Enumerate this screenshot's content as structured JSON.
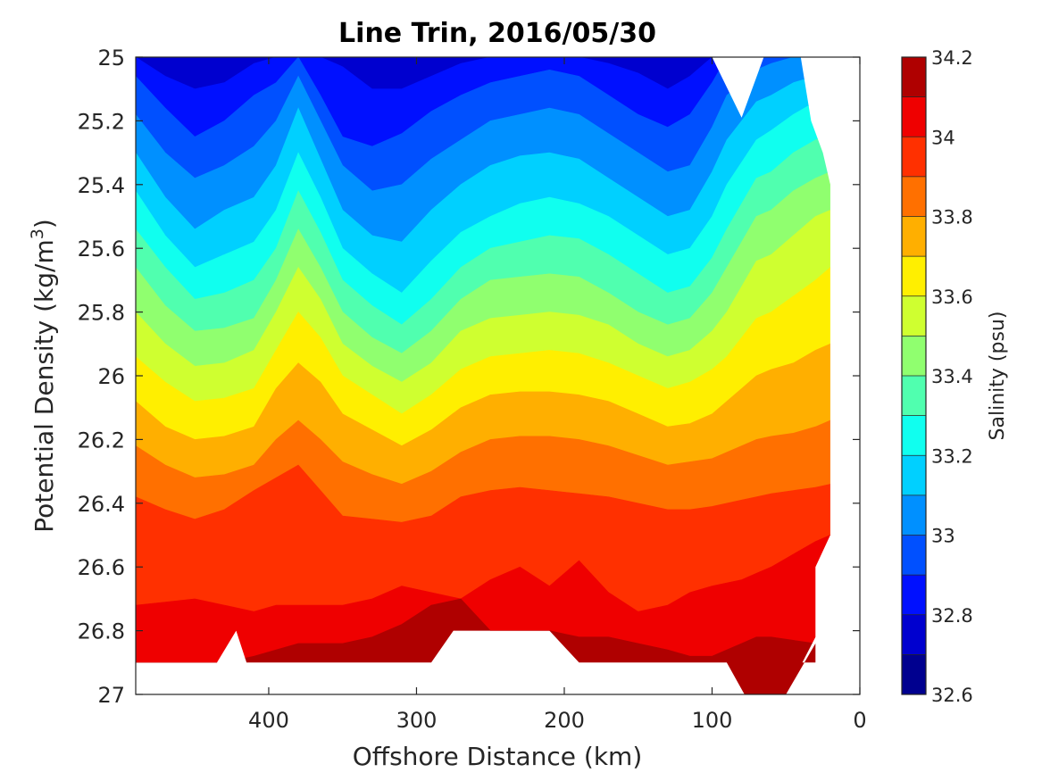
{
  "chart_data": {
    "type": "heatmap",
    "title": "Line Trin, 2016/05/30",
    "xlabel": "Offshore Distance (km)",
    "ylabel_main": "Potential Density (kg/m",
    "ylabel_sup": "3",
    "ylabel_end": ")",
    "colorbar_label": "Salinity (psu)",
    "xlim": [
      490,
      0
    ],
    "ylim": [
      25,
      27
    ],
    "x_ticks": [
      400,
      300,
      200,
      100,
      0
    ],
    "x_tick_labels": [
      "400",
      "300",
      "200",
      "100",
      "0"
    ],
    "y_ticks": [
      25,
      25.2,
      25.4,
      25.6,
      25.8,
      26,
      26.2,
      26.4,
      26.6,
      26.8,
      27
    ],
    "y_tick_labels": [
      "25",
      "25.2",
      "25.4",
      "25.6",
      "25.8",
      "26",
      "26.2",
      "26.4",
      "26.6",
      "26.8",
      "27"
    ],
    "colorbar_range": [
      32.6,
      34.2
    ],
    "colorbar_levels": [
      32.6,
      32.7,
      32.8,
      32.9,
      33.0,
      33.1,
      33.2,
      33.3,
      33.4,
      33.5,
      33.6,
      33.7,
      33.8,
      33.9,
      34.0,
      34.1,
      34.2
    ],
    "colorbar_ticks": [
      32.6,
      32.8,
      33,
      33.2,
      33.4,
      33.6,
      33.8,
      34,
      34.2
    ],
    "colorbar_tick_labels": [
      "32.6",
      "32.8",
      "33",
      "33.2",
      "33.4",
      "33.6",
      "33.8",
      "34",
      "34.2"
    ],
    "level_colors": [
      "#00008F",
      "#0000CF",
      "#0010FF",
      "#0050FF",
      "#0090FF",
      "#00D0FF",
      "#10FFEF",
      "#50FFAF",
      "#90FF6F",
      "#CFFF30",
      "#FFEF00",
      "#FFAF00",
      "#FF7000",
      "#FF3000",
      "#EF0000",
      "#AF0000"
    ],
    "sample_x": [
      490,
      470,
      450,
      430,
      410,
      395,
      380,
      365,
      350,
      330,
      310,
      290,
      270,
      250,
      230,
      210,
      190,
      170,
      150,
      130,
      115,
      100,
      90,
      80,
      70,
      60,
      45,
      30,
      20
    ],
    "isohalines": [
      {
        "salinity": 32.8,
        "density": [
          25,
          25.06,
          25.1,
          25.08,
          25.02,
          25,
          25,
          25,
          25.03,
          25.1,
          25.1,
          25.06,
          25.02,
          25,
          25,
          25,
          25,
          25.02,
          25.05,
          25.1,
          25.06,
          25,
          25,
          25,
          25,
          25,
          25,
          25,
          25
        ]
      },
      {
        "salinity": 32.9,
        "density": [
          25.06,
          25.16,
          25.25,
          25.2,
          25.12,
          25.08,
          25,
          25.12,
          25.25,
          25.28,
          25.24,
          25.17,
          25.12,
          25.08,
          25.06,
          25.04,
          25.06,
          25.12,
          25.18,
          25.22,
          25.18,
          25.08,
          25,
          25,
          25,
          25,
          25,
          25,
          25
        ]
      },
      {
        "salinity": 33.0,
        "density": [
          25.18,
          25.3,
          25.38,
          25.34,
          25.28,
          25.2,
          25.06,
          25.2,
          25.34,
          25.42,
          25.4,
          25.32,
          25.26,
          25.2,
          25.18,
          25.16,
          25.18,
          25.24,
          25.3,
          25.36,
          25.34,
          25.22,
          25.12,
          25.08,
          25.04,
          25.02,
          25,
          25,
          25
        ]
      },
      {
        "salinity": 33.1,
        "density": [
          25.3,
          25.44,
          25.54,
          25.48,
          25.44,
          25.34,
          25.16,
          25.32,
          25.48,
          25.56,
          25.58,
          25.48,
          25.4,
          25.34,
          25.31,
          25.3,
          25.32,
          25.38,
          25.44,
          25.5,
          25.48,
          25.36,
          25.26,
          25.2,
          25.14,
          25.12,
          25.08,
          25.06,
          25.05
        ]
      },
      {
        "salinity": 33.2,
        "density": [
          25.42,
          25.56,
          25.66,
          25.62,
          25.58,
          25.48,
          25.3,
          25.44,
          25.6,
          25.68,
          25.74,
          25.64,
          25.55,
          25.5,
          25.46,
          25.44,
          25.46,
          25.5,
          25.56,
          25.62,
          25.6,
          25.5,
          25.4,
          25.33,
          25.26,
          25.23,
          25.18,
          25.14,
          25.12
        ]
      },
      {
        "salinity": 33.3,
        "density": [
          25.54,
          25.66,
          25.76,
          25.74,
          25.7,
          25.6,
          25.42,
          25.55,
          25.7,
          25.78,
          25.84,
          25.76,
          25.66,
          25.6,
          25.58,
          25.56,
          25.57,
          25.62,
          25.68,
          25.74,
          25.72,
          25.63,
          25.54,
          25.46,
          25.38,
          25.36,
          25.3,
          25.26,
          25.24
        ]
      },
      {
        "salinity": 33.4,
        "density": [
          25.66,
          25.78,
          25.86,
          25.85,
          25.82,
          25.7,
          25.54,
          25.66,
          25.8,
          25.88,
          25.93,
          25.86,
          25.76,
          25.7,
          25.69,
          25.68,
          25.69,
          25.74,
          25.8,
          25.84,
          25.82,
          25.74,
          25.66,
          25.58,
          25.5,
          25.48,
          25.42,
          25.38,
          25.36
        ]
      },
      {
        "salinity": 33.5,
        "density": [
          25.8,
          25.9,
          25.97,
          25.96,
          25.92,
          25.8,
          25.66,
          25.76,
          25.9,
          25.97,
          26.02,
          25.96,
          25.86,
          25.82,
          25.81,
          25.8,
          25.81,
          25.84,
          25.9,
          25.94,
          25.92,
          25.86,
          25.8,
          25.72,
          25.64,
          25.62,
          25.56,
          25.5,
          25.48
        ]
      },
      {
        "salinity": 33.6,
        "density": [
          25.94,
          26.02,
          26.08,
          26.07,
          26.04,
          25.92,
          25.8,
          25.88,
          26,
          26.06,
          26.12,
          26.06,
          25.98,
          25.94,
          25.93,
          25.92,
          25.93,
          25.96,
          26,
          26.04,
          26.02,
          25.98,
          25.94,
          25.88,
          25.82,
          25.8,
          25.75,
          25.7,
          25.66
        ]
      },
      {
        "salinity": 33.7,
        "density": [
          26.08,
          26.16,
          26.2,
          26.19,
          26.16,
          26.04,
          25.96,
          26.02,
          26.12,
          26.17,
          26.22,
          26.17,
          26.1,
          26.06,
          26.05,
          26.05,
          26.06,
          26.08,
          26.12,
          26.16,
          26.15,
          26.12,
          26.08,
          26.04,
          26,
          25.98,
          25.96,
          25.92,
          25.9
        ]
      },
      {
        "salinity": 33.8,
        "density": [
          26.22,
          26.28,
          26.32,
          26.31,
          26.28,
          26.2,
          26.14,
          26.2,
          26.27,
          26.31,
          26.34,
          26.3,
          26.24,
          26.2,
          26.19,
          26.19,
          26.2,
          26.22,
          26.25,
          26.28,
          26.27,
          26.26,
          26.24,
          26.22,
          26.2,
          26.19,
          26.18,
          26.16,
          26.14
        ]
      },
      {
        "salinity": 33.9,
        "density": [
          26.38,
          26.42,
          26.45,
          26.42,
          26.36,
          26.32,
          26.28,
          26.36,
          26.44,
          26.45,
          26.46,
          26.44,
          26.38,
          26.36,
          26.35,
          26.36,
          26.37,
          26.38,
          26.4,
          26.42,
          26.42,
          26.41,
          26.4,
          26.39,
          26.38,
          26.37,
          26.36,
          26.35,
          26.34
        ]
      },
      {
        "salinity": 34.0,
        "density": [
          26.72,
          26.71,
          26.7,
          26.72,
          26.74,
          26.72,
          26.72,
          26.72,
          26.72,
          26.7,
          26.66,
          26.68,
          26.7,
          26.64,
          26.6,
          26.66,
          26.58,
          26.68,
          26.74,
          26.72,
          26.68,
          26.66,
          26.65,
          26.64,
          26.62,
          26.6,
          26.56,
          26.52,
          26.5
        ]
      },
      {
        "salinity": 34.1,
        "density": [
          26.9,
          26.9,
          26.9,
          26.9,
          26.88,
          26.86,
          26.84,
          26.84,
          26.84,
          26.82,
          26.78,
          26.72,
          26.7,
          26.8,
          26.8,
          26.8,
          26.82,
          26.82,
          26.84,
          26.86,
          26.88,
          26.88,
          26.86,
          26.84,
          26.82,
          26.82,
          26.83,
          26.84,
          26.86
        ]
      }
    ],
    "data_top_boundary": [
      [
        490,
        25
      ],
      [
        100,
        25
      ],
      [
        80,
        25.19
      ],
      [
        65,
        25
      ],
      [
        40,
        25
      ],
      [
        33,
        25.2
      ],
      [
        25,
        25.3
      ],
      [
        20,
        25.4
      ]
    ],
    "data_right_boundary": [
      [
        20,
        25.4
      ],
      [
        20,
        26.5
      ],
      [
        30,
        26.6
      ],
      [
        30,
        26.9
      ]
    ],
    "data_bottom_boundary": [
      [
        30,
        26.9
      ],
      [
        30,
        26.82
      ],
      [
        50,
        27
      ],
      [
        78,
        27
      ],
      [
        90,
        26.9
      ],
      [
        190,
        26.9
      ],
      [
        210,
        26.8
      ],
      [
        275,
        26.8
      ],
      [
        290,
        26.9
      ],
      [
        415,
        26.9
      ],
      [
        422,
        26.8
      ],
      [
        435,
        26.9
      ],
      [
        490,
        26.9
      ]
    ],
    "high_salinity_patch": [
      [
        90,
        26.9
      ],
      [
        30,
        26.9
      ],
      [
        30,
        26.84
      ],
      [
        50,
        27
      ],
      [
        78,
        27
      ]
    ]
  }
}
